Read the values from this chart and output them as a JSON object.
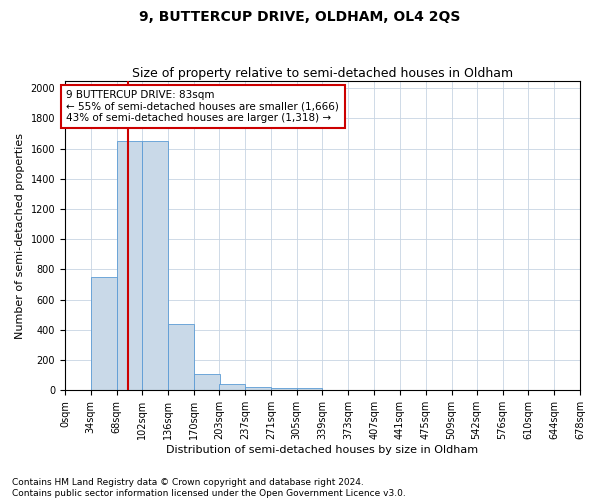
{
  "title": "9, BUTTERCUP DRIVE, OLDHAM, OL4 2QS",
  "subtitle": "Size of property relative to semi-detached houses in Oldham",
  "xlabel": "Distribution of semi-detached houses by size in Oldham",
  "ylabel": "Number of semi-detached properties",
  "footnote1": "Contains HM Land Registry data © Crown copyright and database right 2024.",
  "footnote2": "Contains public sector information licensed under the Open Government Licence v3.0.",
  "annotation_title": "9 BUTTERCUP DRIVE: 83sqm",
  "annotation_line1": "← 55% of semi-detached houses are smaller (1,666)",
  "annotation_line2": "43% of semi-detached houses are larger (1,318) →",
  "property_size": 83,
  "bin_edges": [
    0,
    34,
    68,
    102,
    136,
    170,
    203,
    237,
    271,
    305,
    339,
    373,
    407,
    441,
    475,
    509,
    542,
    576,
    610,
    644,
    678
  ],
  "bin_labels": [
    "0sqm",
    "34sqm",
    "68sqm",
    "102sqm",
    "136sqm",
    "170sqm",
    "203sqm",
    "237sqm",
    "271sqm",
    "305sqm",
    "339sqm",
    "373sqm",
    "407sqm",
    "441sqm",
    "475sqm",
    "509sqm",
    "542sqm",
    "576sqm",
    "610sqm",
    "644sqm",
    "678sqm"
  ],
  "counts": [
    0,
    750,
    1650,
    1650,
    440,
    105,
    40,
    25,
    15,
    15,
    0,
    0,
    0,
    0,
    0,
    0,
    0,
    0,
    0,
    0
  ],
  "bar_color": "#c9d9e8",
  "bar_edge_color": "#5b9bd5",
  "red_line_color": "#cc0000",
  "annotation_box_color": "#cc0000",
  "grid_color": "#c8d4e3",
  "ylim": [
    0,
    2050
  ],
  "yticks": [
    0,
    200,
    400,
    600,
    800,
    1000,
    1200,
    1400,
    1600,
    1800,
    2000
  ],
  "title_fontsize": 10,
  "subtitle_fontsize": 9,
  "axis_label_fontsize": 8,
  "tick_fontsize": 7,
  "footnote_fontsize": 6.5,
  "annotation_fontsize": 7.5
}
